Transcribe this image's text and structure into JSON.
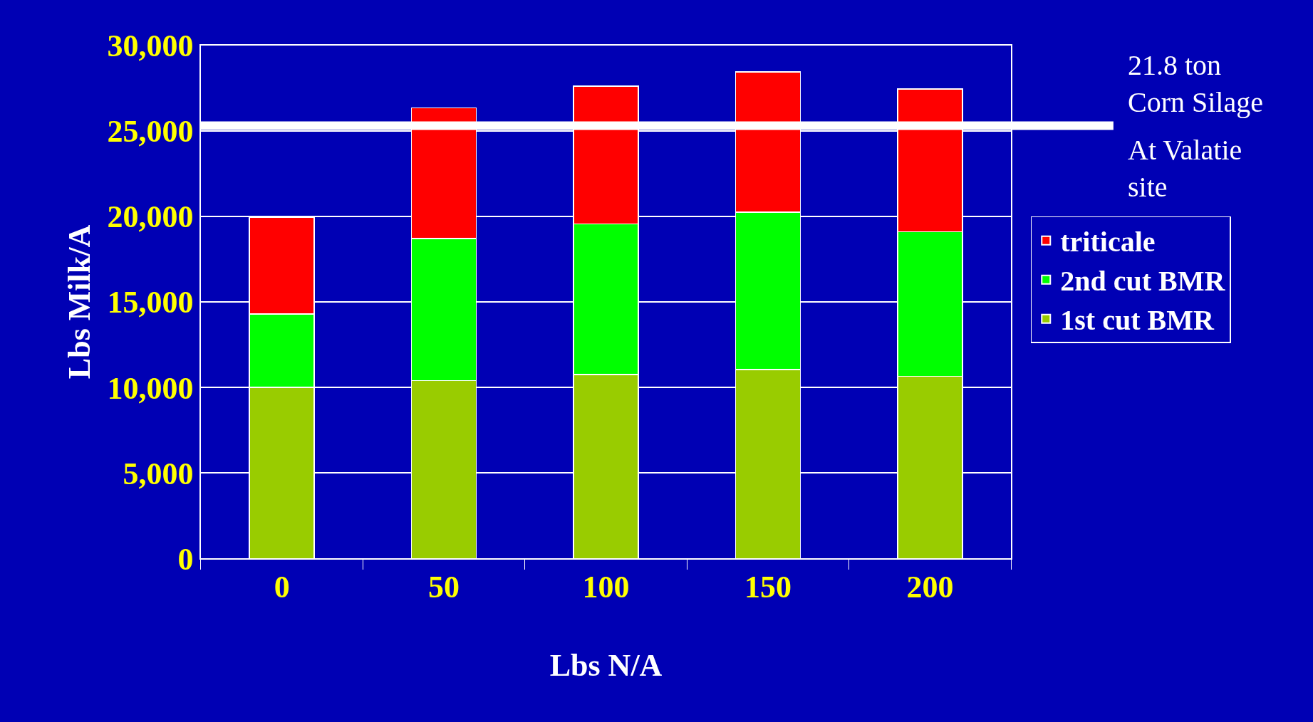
{
  "chart_data": {
    "type": "bar",
    "stacked": true,
    "xlabel": "Lbs N/A",
    "ylabel": "Lbs Milk/A",
    "categories": [
      "0",
      "50",
      "100",
      "150",
      "200"
    ],
    "series": [
      {
        "name": "1st cut BMR",
        "color": "#99cc00",
        "values": [
          10000,
          10400,
          10750,
          11050,
          10650
        ]
      },
      {
        "name": "2nd cut BMR",
        "color": "#00ff00",
        "values": [
          4300,
          8300,
          8800,
          9200,
          8450
        ]
      },
      {
        "name": "triticale",
        "color": "#ff0000",
        "values": [
          5650,
          7650,
          8050,
          8200,
          8350
        ]
      }
    ],
    "ylim": [
      0,
      30000
    ],
    "yticks": [
      {
        "value": 0,
        "label": "0"
      },
      {
        "value": 5000,
        "label": "5,000"
      },
      {
        "value": 10000,
        "label": "10,000"
      },
      {
        "value": 15000,
        "label": "15,000"
      },
      {
        "value": 20000,
        "label": "20,000"
      },
      {
        "value": 25000,
        "label": "25,000"
      },
      {
        "value": 30000,
        "label": "30,000"
      }
    ],
    "grid": "y",
    "legend": "right",
    "ref_lines": [
      {
        "axis": "y",
        "value": 25300,
        "label": "21.8 ton\nCorn Silage",
        "color": "#ffffff"
      }
    ],
    "annotations": [
      "At Valatie\nsite"
    ]
  }
}
